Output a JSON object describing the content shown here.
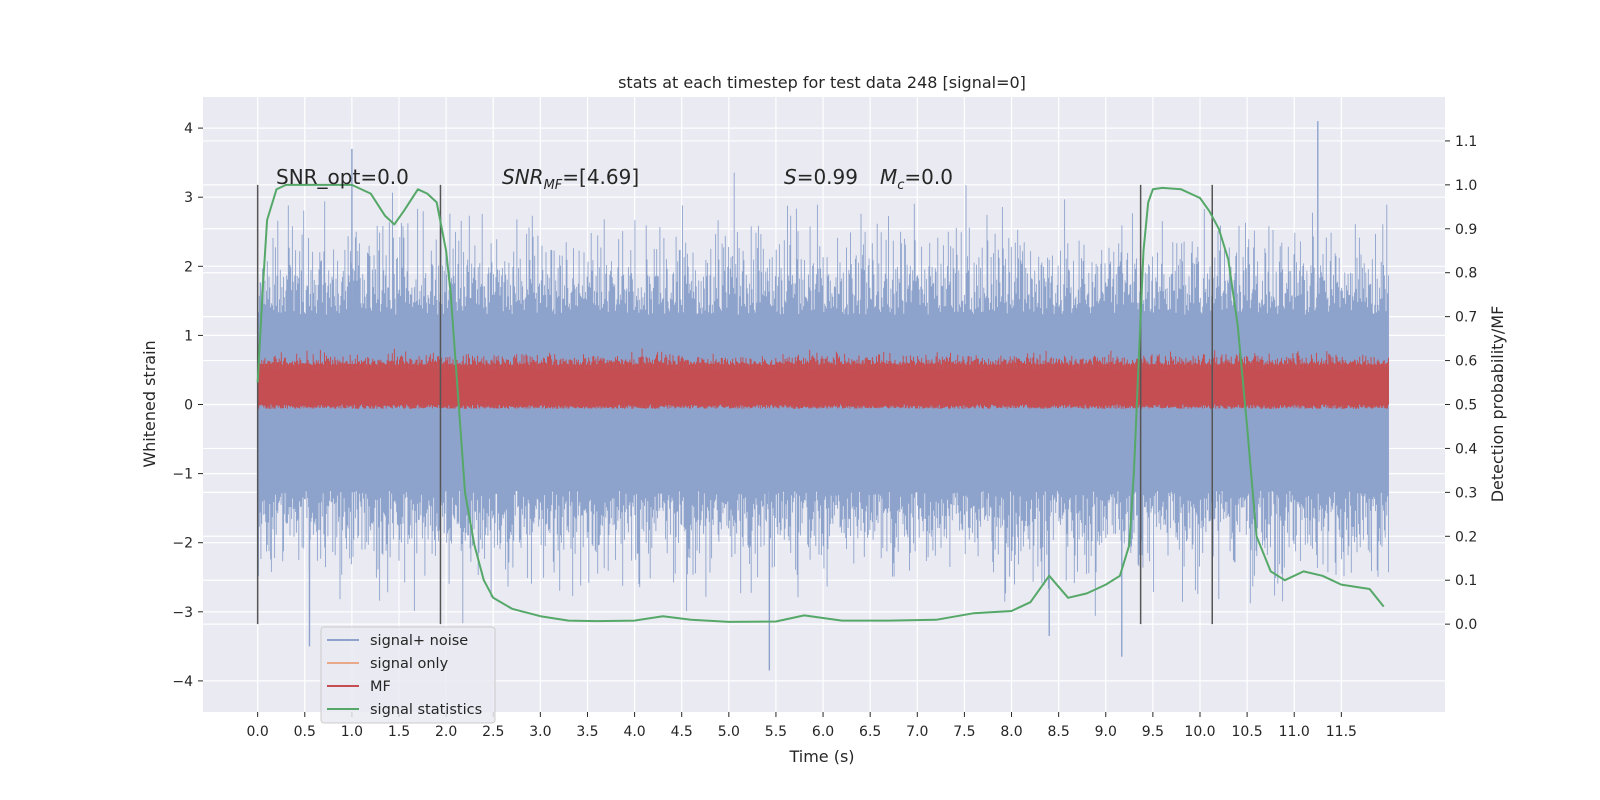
{
  "chart_data": {
    "type": "line",
    "title": "stats at each timestep for test data 248 [signal=0]",
    "xlabel": "Time (s)",
    "ylabel": "Whitened strain",
    "y2label": "Detection probability/MF",
    "xlim": [
      -0.58,
      12.6
    ],
    "ylim": [
      -4.45,
      4.45
    ],
    "y2lim": [
      -0.2,
      1.2
    ],
    "x_ticks": [
      "0.0",
      "0.5",
      "1.0",
      "1.5",
      "2.0",
      "2.5",
      "3.0",
      "3.5",
      "4.0",
      "4.5",
      "5.0",
      "5.5",
      "6.0",
      "6.5",
      "7.0",
      "7.5",
      "8.0",
      "8.5",
      "9.0",
      "9.5",
      "10.0",
      "10.5",
      "11.0",
      "11.5"
    ],
    "y_ticks": [
      "4",
      "3",
      "2",
      "1",
      "0",
      "−1",
      "−2",
      "−3",
      "−4"
    ],
    "y2_ticks": [
      "1.1",
      "1.0",
      "0.9",
      "0.8",
      "0.7",
      "0.6",
      "0.5",
      "0.4",
      "0.3",
      "0.2",
      "0.1",
      "0.0"
    ],
    "grid": true,
    "legend_position": "lower-left",
    "annotations": {
      "snr_opt": "SNR_opt=0.0",
      "snr_mf_prefix": "SNR",
      "snr_mf_sub": "MF",
      "snr_mf_value": "=[4.69]",
      "s_symbol": "S",
      "s_value": "=0.99",
      "mc_symbol": "M",
      "mc_sub": "c",
      "mc_value": "=0.0"
    },
    "vertical_lines_x": [
      0.0,
      1.94,
      9.37,
      10.13
    ],
    "series": [
      {
        "name": "signal+ noise",
        "color": "#8ea3cc",
        "axis": "left",
        "x_range": [
          0.0,
          12.0
        ],
        "band_core": [
          -1.25,
          1.3
        ],
        "spike_max": 4.1,
        "spike_min": -3.9,
        "notable_spikes": [
          [
            1.0,
            3.7
          ],
          [
            11.25,
            4.1
          ],
          [
            5.43,
            -3.85
          ],
          [
            9.17,
            -3.65
          ],
          [
            0.55,
            -3.5
          ],
          [
            8.4,
            -3.35
          ]
        ]
      },
      {
        "name": "signal only",
        "color": "#e8a88a",
        "axis": "right",
        "values": []
      },
      {
        "name": "MF",
        "color": "#c44e52",
        "axis": "right",
        "x_range": [
          0.0,
          12.0
        ],
        "band": [
          0.49,
          0.62
        ],
        "spike_max": 0.67
      },
      {
        "name": "signal statistics",
        "color": "#55a868",
        "axis": "right",
        "x": [
          0.0,
          0.05,
          0.1,
          0.2,
          0.3,
          0.5,
          0.8,
          1.0,
          1.2,
          1.35,
          1.45,
          1.55,
          1.7,
          1.8,
          1.9,
          2.0,
          2.05,
          2.1,
          2.15,
          2.2,
          2.3,
          2.4,
          2.5,
          2.7,
          3.0,
          3.3,
          3.6,
          4.0,
          4.3,
          4.6,
          5.0,
          5.5,
          5.8,
          6.2,
          6.7,
          7.2,
          7.6,
          8.0,
          8.2,
          8.4,
          8.6,
          8.8,
          9.0,
          9.15,
          9.25,
          9.3,
          9.35,
          9.4,
          9.45,
          9.5,
          9.6,
          9.8,
          10.0,
          10.1,
          10.2,
          10.3,
          10.4,
          10.5,
          10.6,
          10.75,
          10.9,
          11.1,
          11.3,
          11.5,
          11.8,
          11.95
        ],
        "y": [
          0.55,
          0.75,
          0.92,
          0.99,
          1.0,
          1.0,
          1.0,
          1.0,
          0.98,
          0.93,
          0.91,
          0.94,
          0.99,
          0.98,
          0.96,
          0.85,
          0.75,
          0.6,
          0.45,
          0.3,
          0.18,
          0.1,
          0.06,
          0.035,
          0.018,
          0.008,
          0.007,
          0.008,
          0.018,
          0.01,
          0.005,
          0.006,
          0.02,
          0.008,
          0.008,
          0.01,
          0.025,
          0.03,
          0.05,
          0.11,
          0.06,
          0.07,
          0.09,
          0.11,
          0.18,
          0.35,
          0.6,
          0.85,
          0.96,
          0.99,
          0.993,
          0.99,
          0.97,
          0.94,
          0.9,
          0.83,
          0.68,
          0.45,
          0.2,
          0.12,
          0.1,
          0.12,
          0.11,
          0.09,
          0.08,
          0.04
        ]
      }
    ]
  }
}
